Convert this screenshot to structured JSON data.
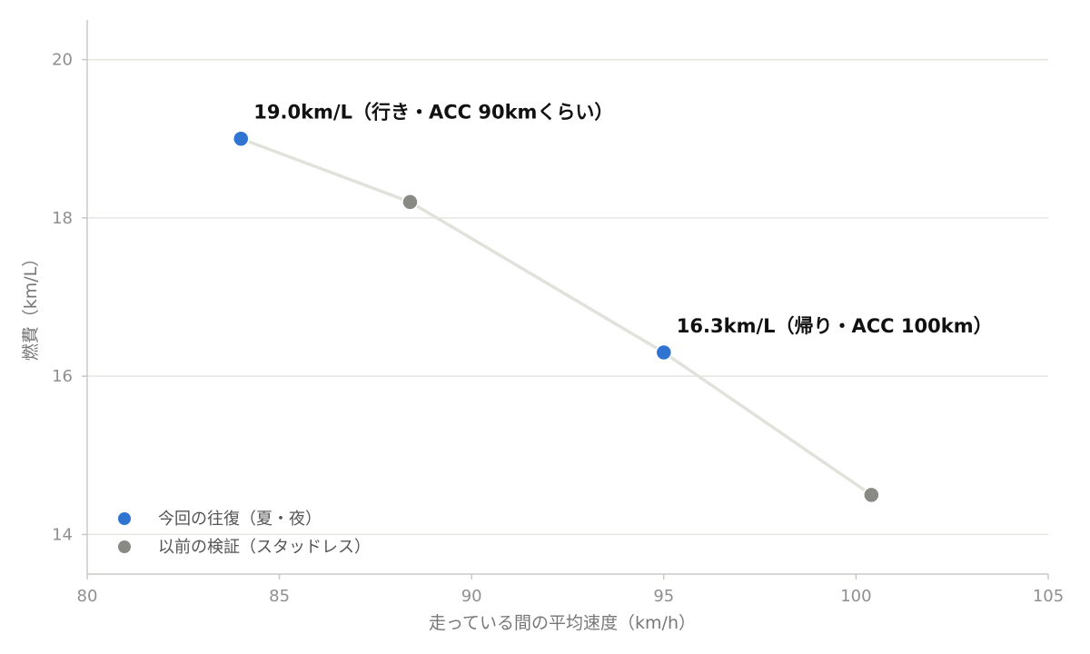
{
  "chart_data": {
    "type": "scatter",
    "title": "",
    "xlabel": "走っている間の平均速度（km/h）",
    "ylabel": "燃費（km/L）",
    "xlim": [
      80,
      105
    ],
    "ylim": [
      13.5,
      20.5
    ],
    "xticks": [
      80,
      85,
      90,
      95,
      100,
      105
    ],
    "yticks": [
      14,
      16,
      18,
      20
    ],
    "grid": "horizontal",
    "legend_position": "bottom-left",
    "line_color": "#e2e2dc",
    "series": [
      {
        "name": "今回の往復（夏・夜）",
        "color": "#2f74d0",
        "points": [
          {
            "x": 84.0,
            "y": 19.0
          },
          {
            "x": 95.0,
            "y": 16.3
          }
        ]
      },
      {
        "name": "以前の検証（スタッドレス）",
        "color": "#8a8a84",
        "points": [
          {
            "x": 88.4,
            "y": 18.2
          },
          {
            "x": 100.4,
            "y": 14.5
          }
        ]
      }
    ],
    "connecting_line": [
      {
        "x": 84.0,
        "y": 19.0
      },
      {
        "x": 88.4,
        "y": 18.2
      },
      {
        "x": 95.0,
        "y": 16.3
      },
      {
        "x": 100.4,
        "y": 14.5
      }
    ],
    "annotations": [
      {
        "text": "19.0km/L（行き・ACC 90kmくらい）",
        "x": 84.0,
        "y": 19.0
      },
      {
        "text": "16.3km/L（帰り・ACC 100km）",
        "x": 95.0,
        "y": 16.3
      }
    ]
  }
}
